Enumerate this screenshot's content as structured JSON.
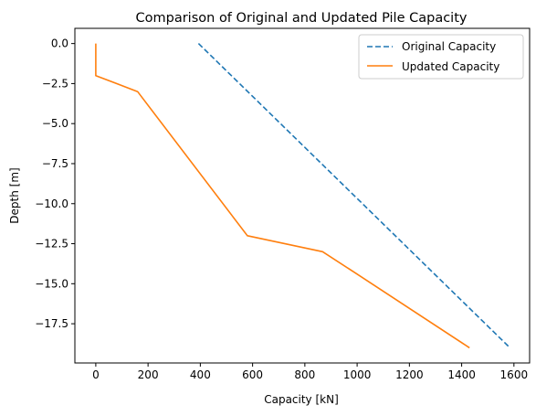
{
  "chart_data": {
    "type": "line",
    "title": "Comparison of Original and Updated Pile Capacity",
    "xlabel": "Capacity [kN]",
    "ylabel": "Depth [m]",
    "xlim": [
      -80,
      1660
    ],
    "ylim": [
      -19.95,
      0.95
    ],
    "x_ticks": [
      0,
      200,
      400,
      600,
      800,
      1000,
      1200,
      1400,
      1600
    ],
    "y_ticks": [
      0.0,
      -2.5,
      -5.0,
      -7.5,
      -10.0,
      -12.5,
      -15.0,
      -17.5
    ],
    "x_tick_labels": [
      "0",
      "200",
      "400",
      "600",
      "800",
      "1000",
      "1200",
      "1400",
      "1600"
    ],
    "y_tick_labels": [
      "0.0",
      "−2.5",
      "−5.0",
      "−7.5",
      "−10.0",
      "−12.5",
      "−15.0",
      "−17.5"
    ],
    "grid": false,
    "legend_position": "top-right",
    "series": [
      {
        "name": "Original Capacity",
        "color": "#1f77b4",
        "style": "dashed",
        "points": [
          [
            393,
            0
          ],
          [
            1585,
            -19
          ]
        ]
      },
      {
        "name": "Updated Capacity",
        "color": "#ff7f0e",
        "style": "solid",
        "points": [
          [
            0,
            0
          ],
          [
            0,
            -2
          ],
          [
            160,
            -3
          ],
          [
            580,
            -12
          ],
          [
            868,
            -13
          ],
          [
            1000,
            -14.4
          ],
          [
            1430,
            -19
          ]
        ]
      }
    ]
  }
}
